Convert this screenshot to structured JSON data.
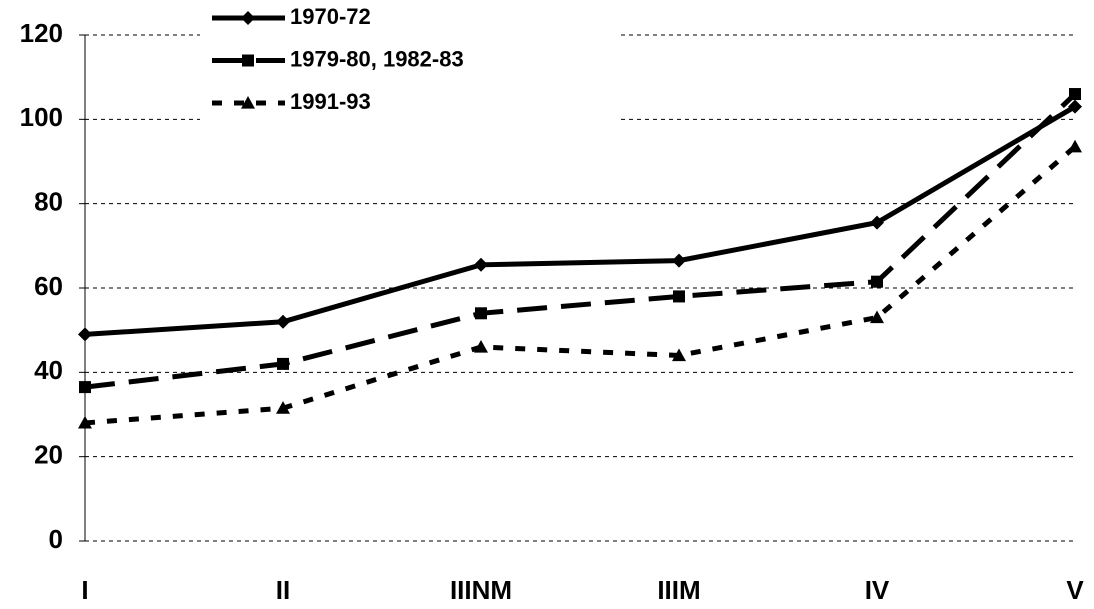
{
  "chart_data": {
    "type": "line",
    "categories": [
      "I",
      "II",
      "IIINM",
      "IIIM",
      "IV",
      "V"
    ],
    "series": [
      {
        "name": "1970-72",
        "color": "#000000",
        "line_style": "solid",
        "marker": "diamond",
        "values": [
          49,
          52,
          65.5,
          66.5,
          75.5,
          103
        ]
      },
      {
        "name": "1979-80, 1982-83",
        "color": "#000000",
        "line_style": "dashed",
        "marker": "square",
        "values": [
          36.5,
          42,
          54,
          58,
          61.5,
          106
        ]
      },
      {
        "name": "1991-93",
        "color": "#000000",
        "line_style": "dotted",
        "marker": "triangle",
        "values": [
          28,
          31.5,
          46,
          44,
          53,
          93.5
        ]
      }
    ],
    "ylim": [
      0,
      120
    ],
    "yticks": [
      0,
      20,
      40,
      60,
      80,
      100,
      120
    ],
    "grid": true,
    "legend": "top-left"
  }
}
